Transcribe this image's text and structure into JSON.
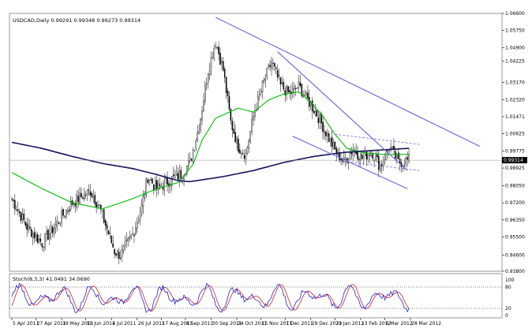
{
  "chart_data": {
    "type": "candlestick",
    "title": "USDCAD,Daily 0.99291 0.99348 0.99273 0.99314",
    "current_price_label": "0.99314",
    "price_axis": {
      "ylim": [
        0.938,
        1.066
      ],
      "ticks": [
        "1.06600",
        "1.05750",
        "1.04900",
        "1.04225",
        "1.03170",
        "1.02320",
        "1.01471",
        "1.00625",
        "0.99775",
        "0.98925",
        "0.98050",
        "0.97200",
        "0.96350",
        "0.95500",
        "0.94600",
        "0.93800"
      ]
    },
    "x_axis": {
      "count": 264,
      "ticks": [
        {
          "i": 0,
          "label": "5 Apr 2011"
        },
        {
          "i": 16,
          "label": "27 Apr 2011"
        },
        {
          "i": 33,
          "label": "19 May 2011"
        },
        {
          "i": 49,
          "label": "10 Jun 2011"
        },
        {
          "i": 66,
          "label": "4 Jul 2011"
        },
        {
          "i": 83,
          "label": "26 Jul 2011"
        },
        {
          "i": 99,
          "label": "17 Aug 2011"
        },
        {
          "i": 115,
          "label": "8 Sep 2011"
        },
        {
          "i": 132,
          "label": "30 Sep 2011"
        },
        {
          "i": 149,
          "label": "24 Oct 2011"
        },
        {
          "i": 165,
          "label": "15 Nov 2011"
        },
        {
          "i": 181,
          "label": "7 Dec 2011"
        },
        {
          "i": 198,
          "label": "29 Dec 2011"
        },
        {
          "i": 214,
          "label": "20 Jan 2012"
        },
        {
          "i": 231,
          "label": "13 Feb 2012"
        },
        {
          "i": 247,
          "label": "6 Mar 2012"
        },
        {
          "i": 264,
          "label": "28 Mar 2012"
        }
      ]
    },
    "close_anchors": [
      [
        0,
        0.974
      ],
      [
        10,
        0.96
      ],
      [
        20,
        0.952
      ],
      [
        30,
        0.962
      ],
      [
        40,
        0.972
      ],
      [
        52,
        0.978
      ],
      [
        58,
        0.97
      ],
      [
        68,
        0.948
      ],
      [
        72,
        0.946
      ],
      [
        80,
        0.956
      ],
      [
        86,
        0.97
      ],
      [
        90,
        0.985
      ],
      [
        96,
        0.979
      ],
      [
        104,
        0.983
      ],
      [
        112,
        0.986
      ],
      [
        118,
        0.992
      ],
      [
        124,
        1.01
      ],
      [
        130,
        1.038
      ],
      [
        135,
        1.052
      ],
      [
        140,
        1.038
      ],
      [
        145,
        1.012
      ],
      [
        150,
        1.0
      ],
      [
        155,
        0.996
      ],
      [
        160,
        1.015
      ],
      [
        166,
        1.03
      ],
      [
        172,
        1.042
      ],
      [
        178,
        1.03
      ],
      [
        184,
        1.026
      ],
      [
        190,
        1.03
      ],
      [
        196,
        1.023
      ],
      [
        202,
        1.016
      ],
      [
        208,
        1.007
      ],
      [
        214,
        0.998
      ],
      [
        220,
        0.992
      ],
      [
        226,
        0.999
      ],
      [
        232,
        0.994
      ],
      [
        238,
        0.998
      ],
      [
        244,
        0.99
      ],
      [
        250,
        1.0
      ],
      [
        256,
        0.992
      ],
      [
        262,
        0.993
      ]
    ],
    "series": [
      {
        "name": "",
        "color": "#00bb00",
        "anchors": [
          [
            0,
            0.987
          ],
          [
            20,
            0.979
          ],
          [
            40,
            0.972
          ],
          [
            60,
            0.969
          ],
          [
            80,
            0.974
          ],
          [
            96,
            0.979
          ],
          [
            110,
            0.982
          ],
          [
            120,
            0.991
          ],
          [
            126,
            1.003
          ],
          [
            135,
            1.014
          ],
          [
            150,
            1.019
          ],
          [
            160,
            1.017
          ],
          [
            170,
            1.023
          ],
          [
            180,
            1.026
          ],
          [
            190,
            1.027
          ],
          [
            198,
            1.022
          ],
          [
            206,
            1.015
          ],
          [
            214,
            1.006
          ],
          [
            222,
            0.999
          ],
          [
            232,
            0.997
          ],
          [
            245,
            0.996
          ],
          [
            262,
            0.996
          ]
        ]
      },
      {
        "name": "",
        "color": "#14145a",
        "anchors": [
          [
            0,
            1.002
          ],
          [
            20,
            0.999
          ],
          [
            40,
            0.995
          ],
          [
            60,
            0.9915
          ],
          [
            80,
            0.989
          ],
          [
            96,
            0.986
          ],
          [
            110,
            0.983
          ],
          [
            118,
            0.9825
          ],
          [
            140,
            0.985
          ],
          [
            160,
            0.988
          ],
          [
            180,
            0.992
          ],
          [
            200,
            0.995
          ],
          [
            220,
            0.997
          ],
          [
            240,
            0.998
          ],
          [
            262,
            0.999
          ]
        ]
      }
    ],
    "trendlines": [
      {
        "from": [
          135,
          1.064
        ],
        "to": [
          310,
          1.0
        ]
      },
      {
        "from": [
          176,
          1.047
        ],
        "to": [
          262,
          0.988
        ]
      },
      {
        "from": [
          186,
          1.005
        ],
        "to": [
          262,
          0.979
        ]
      },
      {
        "from": [
          214,
          1.006
        ],
        "to": [
          270,
          1.001
        ],
        "dashed": true
      },
      {
        "from": [
          214,
          0.993
        ],
        "to": [
          270,
          0.988
        ],
        "dashed": true
      }
    ],
    "stochastic": {
      "label": "Stoch(8,3,3) 41.0491 34.0690",
      "ylim": [
        0,
        100
      ],
      "ticks": [
        "100",
        "80",
        "20",
        "0"
      ],
      "levels": [
        80,
        20
      ],
      "main_color": "#2222cc",
      "signal_color": "#cc2222"
    }
  }
}
